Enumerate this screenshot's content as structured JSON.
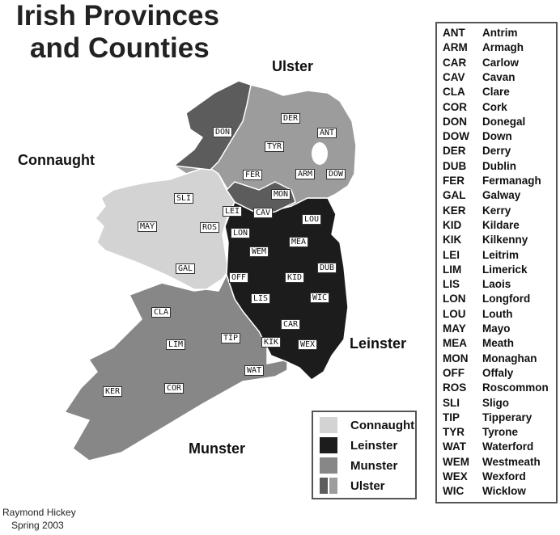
{
  "title_line1": "Irish Provinces",
  "title_line2": "and Counties",
  "provinces": {
    "ulster": "Ulster",
    "connaught": "Connaught",
    "leinster": "Leinster",
    "munster": "Munster"
  },
  "colors": {
    "connaught": "#d3d3d3",
    "leinster": "#1c1c1c",
    "munster": "#878787",
    "ulster_dark": "#5c5c5c",
    "ulster_light": "#9c9c9c"
  },
  "map_labels": [
    "DON",
    "DER",
    "ANT",
    "TYR",
    "FER",
    "ARM",
    "DOW",
    "MON",
    "SLI",
    "LEI",
    "CAV",
    "LOU",
    "MAY",
    "ROS",
    "LON",
    "MEA",
    "WEM",
    "GAL",
    "DUB",
    "OFF",
    "KID",
    "LIS",
    "WIC",
    "CLA",
    "CAR",
    "TIP",
    "LIM",
    "KIK",
    "WEX",
    "WAT",
    "KER",
    "COR"
  ],
  "legend": [
    "Connaught",
    "Leinster",
    "Munster",
    "Ulster"
  ],
  "counties": [
    {
      "abbr": "ANT",
      "name": "Antrim"
    },
    {
      "abbr": "ARM",
      "name": "Armagh"
    },
    {
      "abbr": "CAR",
      "name": "Carlow"
    },
    {
      "abbr": "CAV",
      "name": "Cavan"
    },
    {
      "abbr": "CLA",
      "name": "Clare"
    },
    {
      "abbr": "COR",
      "name": "Cork"
    },
    {
      "abbr": "DON",
      "name": "Donegal"
    },
    {
      "abbr": "DOW",
      "name": "Down"
    },
    {
      "abbr": "DER",
      "name": "Derry"
    },
    {
      "abbr": "DUB",
      "name": "Dublin"
    },
    {
      "abbr": "FER",
      "name": "Fermanagh"
    },
    {
      "abbr": "GAL",
      "name": "Galway"
    },
    {
      "abbr": "KER",
      "name": "Kerry"
    },
    {
      "abbr": "KID",
      "name": "Kildare"
    },
    {
      "abbr": "KIK",
      "name": "Kilkenny"
    },
    {
      "abbr": "LEI",
      "name": "Leitrim"
    },
    {
      "abbr": "LIM",
      "name": "Limerick"
    },
    {
      "abbr": "LIS",
      "name": "Laois"
    },
    {
      "abbr": "LON",
      "name": "Longford"
    },
    {
      "abbr": "LOU",
      "name": "Louth"
    },
    {
      "abbr": "MAY",
      "name": "Mayo"
    },
    {
      "abbr": "MEA",
      "name": "Meath"
    },
    {
      "abbr": "MON",
      "name": "Monaghan"
    },
    {
      "abbr": "OFF",
      "name": "Offaly"
    },
    {
      "abbr": "ROS",
      "name": "Roscommon"
    },
    {
      "abbr": "SLI",
      "name": "Sligo"
    },
    {
      "abbr": "TIP",
      "name": "Tipperary"
    },
    {
      "abbr": "TYR",
      "name": "Tyrone"
    },
    {
      "abbr": "WAT",
      "name": "Waterford"
    },
    {
      "abbr": "WEM",
      "name": "Westmeath"
    },
    {
      "abbr": "WEX",
      "name": "Wexford"
    },
    {
      "abbr": "WIC",
      "name": "Wicklow"
    }
  ],
  "footer": {
    "author": "Raymond Hickey",
    "date": "Spring 2003"
  }
}
